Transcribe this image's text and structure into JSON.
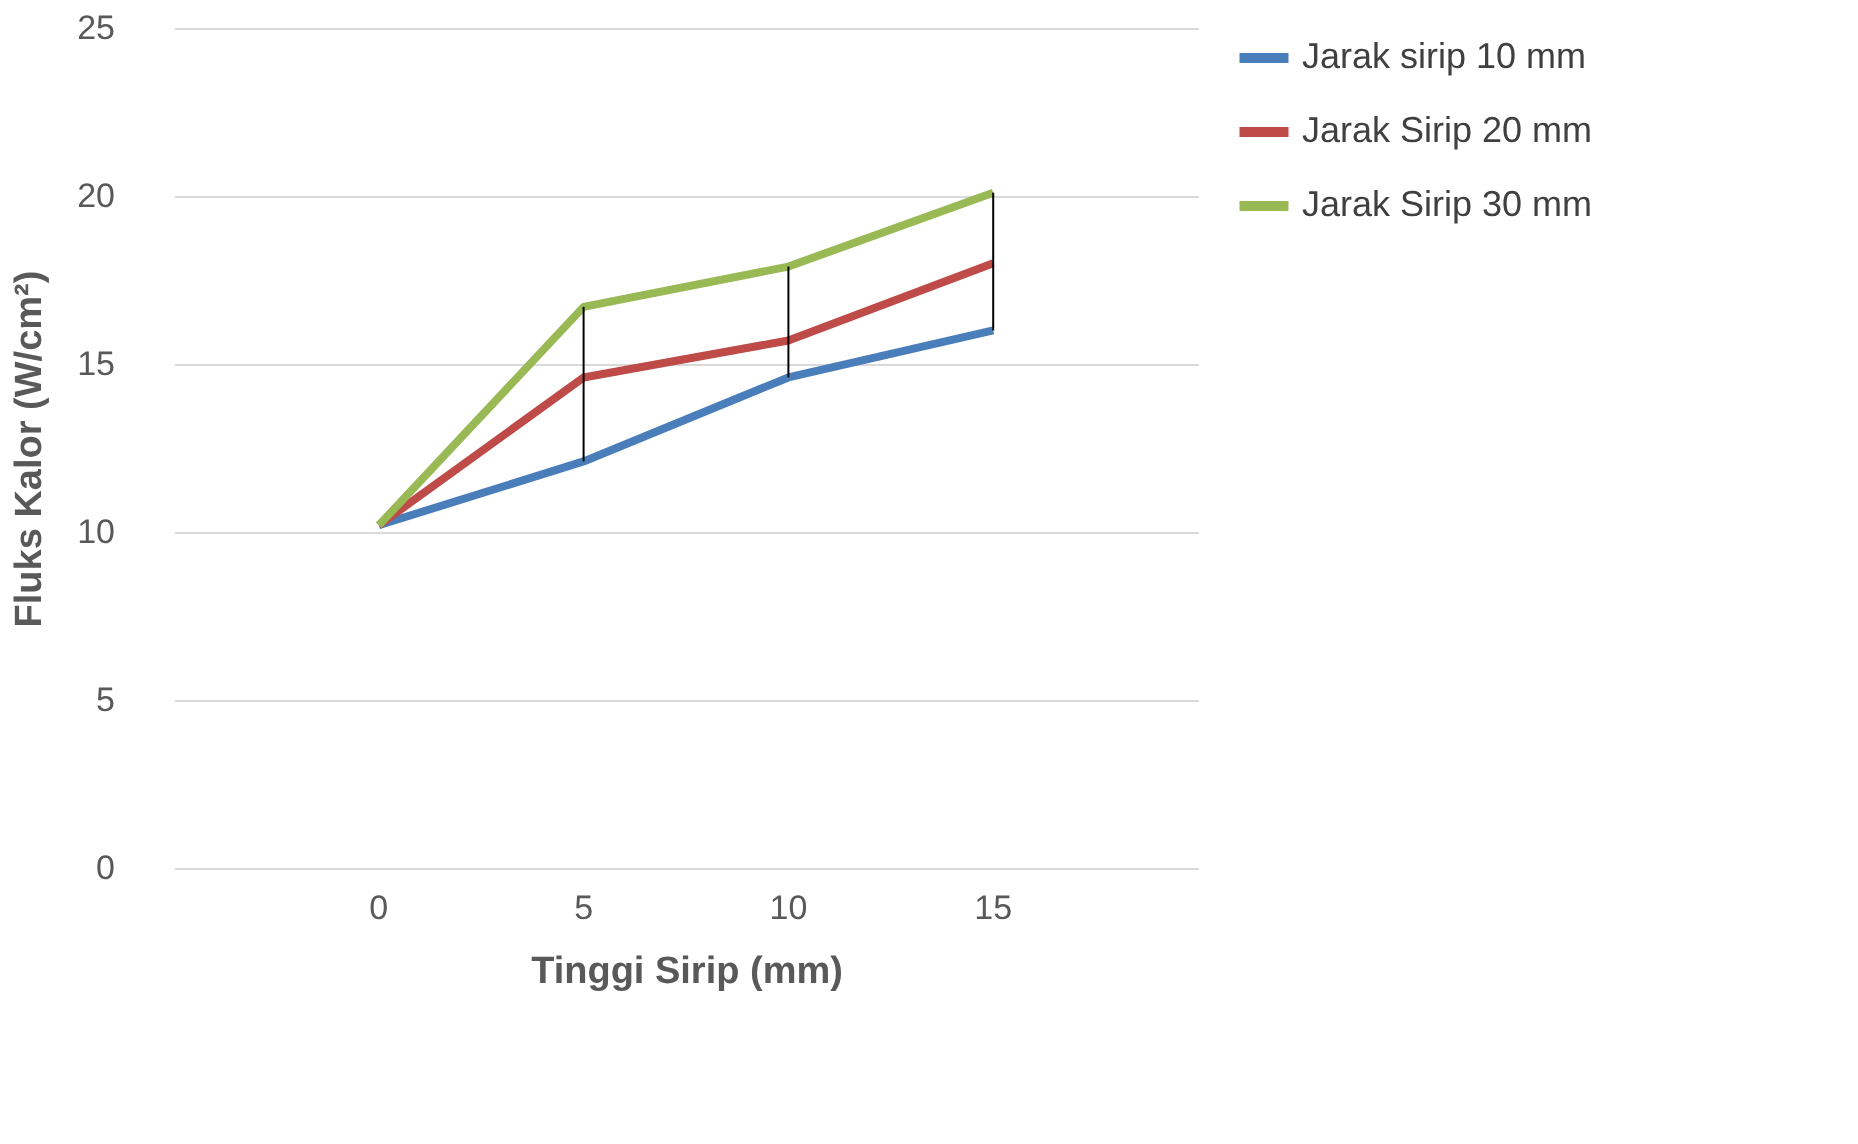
{
  "chart_data": {
    "type": "line",
    "xlabel": "Tinggi Sirip (mm)",
    "ylabel": "Fluks Kalor (W/cm²)",
    "categories": [
      "0",
      "5",
      "10",
      "15"
    ],
    "series": [
      {
        "name": "Jarak sirip 10 mm",
        "color": "#4a7ebb",
        "values": [
          10.2,
          12.1,
          14.6,
          16.0
        ]
      },
      {
        "name": "Jarak Sirip 20 mm",
        "color": "#be4b48",
        "values": [
          10.2,
          14.6,
          15.7,
          18.0
        ]
      },
      {
        "name": "Jarak Sirip 30 mm",
        "color": "#98b954",
        "values": [
          10.2,
          16.7,
          17.9,
          20.1
        ],
        "errors": [
          null,
          [
            12.1,
            16.7
          ],
          [
            14.6,
            17.9
          ],
          [
            16.0,
            20.1
          ]
        ]
      }
    ],
    "ylim": [
      0,
      25
    ],
    "yticks": [
      0,
      5,
      10,
      15,
      20,
      25
    ],
    "grid": "y",
    "legend": "right",
    "marker": "none",
    "line_style": "solid"
  }
}
